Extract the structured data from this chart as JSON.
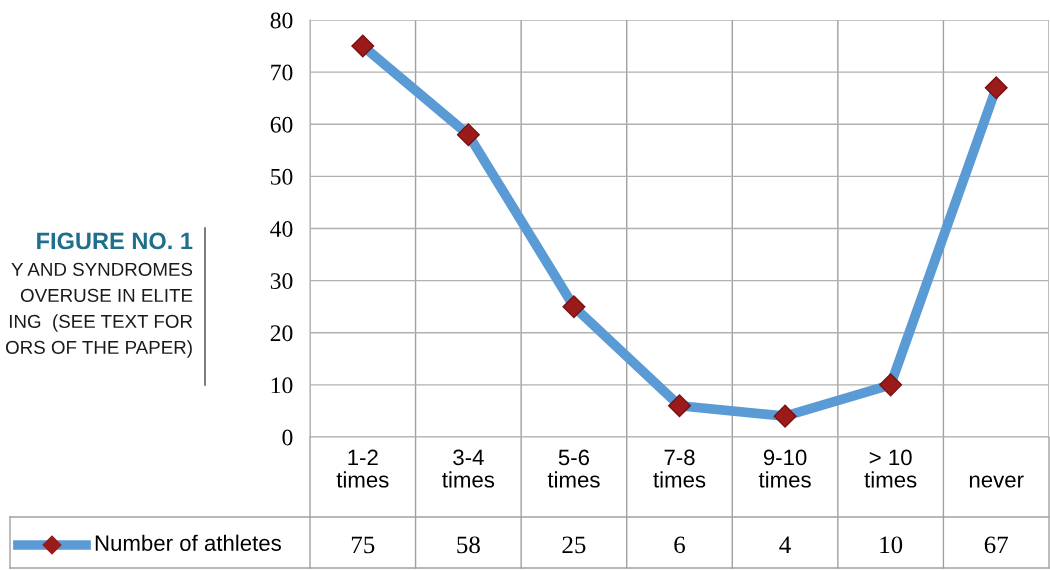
{
  "chart_data": {
    "type": "line",
    "categories": [
      "1-2 times",
      "3-4 times",
      "5-6 times",
      "7-8 times",
      "9-10 times",
      "> 10 times",
      "never"
    ],
    "series": [
      {
        "name": "Number of athletes",
        "color": "#5b9bd5",
        "values": [
          75,
          58,
          25,
          6,
          4,
          10,
          67
        ]
      }
    ],
    "ylim": [
      0,
      80
    ],
    "yticks": [
      0,
      10,
      20,
      30,
      40,
      50,
      60,
      70,
      80
    ],
    "grid": "y",
    "marker": "diamond",
    "line_style": "solid",
    "data_labels": true,
    "legend": "bottom",
    "annotations": [
      "FIGURE NO. 1",
      "Y AND SYNDROMES",
      "OVERUSE IN ELITE",
      "ING  (SEE TEXT FOR",
      "ORS OF THE PAPER)"
    ]
  }
}
